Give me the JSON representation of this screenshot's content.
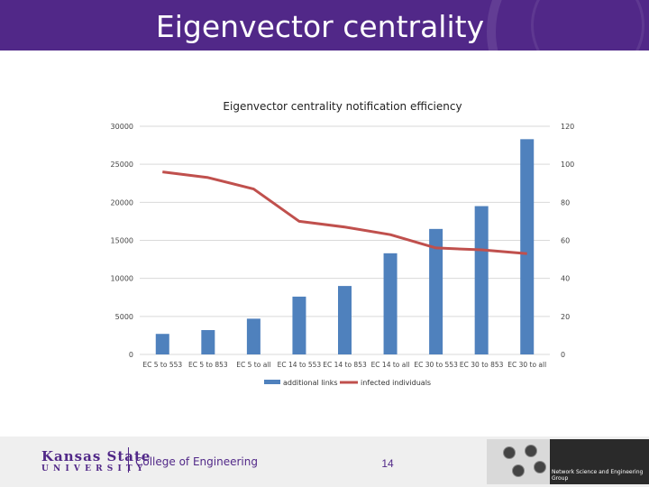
{
  "header": {
    "title": "Eigenvector centrality"
  },
  "chart_data": {
    "type": "bar",
    "title": "Eigenvector centrality notification efficiency",
    "categories": [
      "EC 5 to 553",
      "EC 5 to 853",
      "EC 5 to all",
      "EC 14 to 553",
      "EC 14 to 853",
      "EC 14 to all",
      "EC 30 to 553",
      "EC 30 to 853",
      "EC 30 to all"
    ],
    "left_axis": {
      "min": 0,
      "max": 30000,
      "ticks": [
        "0",
        "5000",
        "10000",
        "15000",
        "20000",
        "25000",
        "30000"
      ]
    },
    "right_axis": {
      "min": 0,
      "max": 120,
      "ticks": [
        "0",
        "20",
        "40",
        "60",
        "80",
        "100",
        "120"
      ]
    },
    "grid": true,
    "legend_position": "bottom",
    "series": [
      {
        "name": "additional links",
        "type": "bar",
        "axis": "left",
        "color": "#4f81bd",
        "values": [
          2700,
          3200,
          4700,
          7600,
          9000,
          13300,
          16500,
          19500,
          28300
        ]
      },
      {
        "name": "infected individuals",
        "type": "line",
        "axis": "right",
        "color": "#c0504d",
        "values": [
          96,
          93,
          87,
          70,
          67,
          63,
          56,
          55,
          53
        ]
      }
    ]
  },
  "footer": {
    "university_line1": "Kansas State",
    "university_line2": "UNIVERSITY",
    "college": "College of Engineering",
    "page_number": "14",
    "group_name": "Network Science and Engineering Group"
  }
}
